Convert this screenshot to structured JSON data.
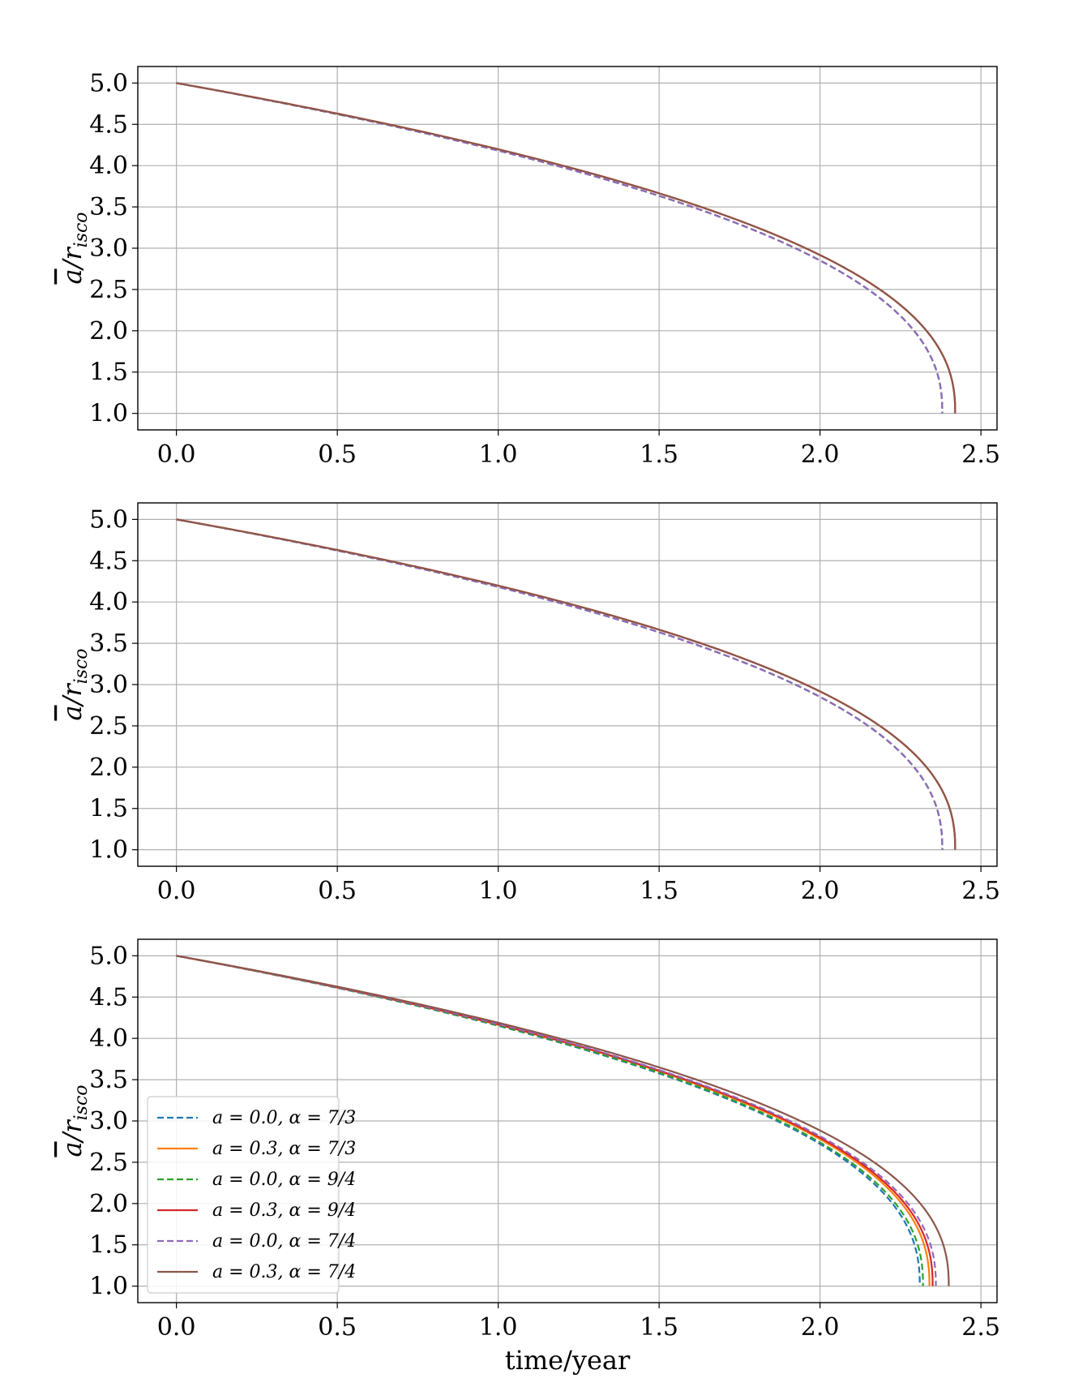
{
  "chart_data": [
    {
      "type": "line",
      "title": "",
      "xlabel": "",
      "ylabel": "ā/r_isco",
      "ylabel_display": {
        "main": "a",
        "over": "/r",
        "sub": "isco"
      },
      "xlim": [
        -0.12,
        2.55
      ],
      "ylim": [
        0.8,
        5.2
      ],
      "xticks": [
        "0.0",
        "0.5",
        "1.0",
        "1.5",
        "2.0",
        "2.5"
      ],
      "yticks": [
        "1.0",
        "1.5",
        "2.0",
        "2.5",
        "3.0",
        "3.5",
        "4.0",
        "4.5",
        "5.0"
      ],
      "grid": true,
      "legend": false,
      "series": [
        {
          "color": "#1f77b4",
          "dashed": true,
          "x_end": 2.38
        },
        {
          "color": "#ff7f0e",
          "dashed": false,
          "x_end": 2.42
        },
        {
          "color": "#2ca02c",
          "dashed": true,
          "x_end": 2.38
        },
        {
          "color": "#d62728",
          "dashed": false,
          "x_end": 2.42
        },
        {
          "color": "#9467bd",
          "dashed": true,
          "x_end": 2.38
        },
        {
          "color": "#8c564b",
          "dashed": false,
          "x_end": 2.42
        }
      ]
    },
    {
      "type": "line",
      "title": "",
      "xlabel": "",
      "ylabel": "ā/r_isco",
      "ylabel_display": {
        "main": "a",
        "over": "/r",
        "sub": "isco"
      },
      "xlim": [
        -0.12,
        2.55
      ],
      "ylim": [
        0.8,
        5.2
      ],
      "xticks": [
        "0.0",
        "0.5",
        "1.0",
        "1.5",
        "2.0",
        "2.5"
      ],
      "yticks": [
        "1.0",
        "1.5",
        "2.0",
        "2.5",
        "3.0",
        "3.5",
        "4.0",
        "4.5",
        "5.0"
      ],
      "grid": true,
      "legend": false,
      "series": [
        {
          "color": "#1f77b4",
          "dashed": true,
          "x_end": 2.38
        },
        {
          "color": "#ff7f0e",
          "dashed": false,
          "x_end": 2.42
        },
        {
          "color": "#2ca02c",
          "dashed": true,
          "x_end": 2.38
        },
        {
          "color": "#d62728",
          "dashed": false,
          "x_end": 2.42
        },
        {
          "color": "#9467bd",
          "dashed": true,
          "x_end": 2.38
        },
        {
          "color": "#8c564b",
          "dashed": false,
          "x_end": 2.42
        }
      ]
    },
    {
      "type": "line",
      "title": "",
      "xlabel": "time/year",
      "ylabel": "ā/r_isco",
      "ylabel_display": {
        "main": "a",
        "over": "/r",
        "sub": "isco"
      },
      "xlim": [
        -0.12,
        2.55
      ],
      "ylim": [
        0.8,
        5.2
      ],
      "xticks": [
        "0.0",
        "0.5",
        "1.0",
        "1.5",
        "2.0",
        "2.5"
      ],
      "yticks": [
        "1.0",
        "1.5",
        "2.0",
        "2.5",
        "3.0",
        "3.5",
        "4.0",
        "4.5",
        "5.0"
      ],
      "grid": true,
      "legend": "lower-left",
      "series": [
        {
          "name": "a = 0.0, α = 7/3",
          "color": "#1f77b4",
          "dashed": true,
          "x_end": 2.31
        },
        {
          "name": "a = 0.3, α = 7/3",
          "color": "#ff7f0e",
          "dashed": false,
          "x_end": 2.34
        },
        {
          "name": "a = 0.0, α = 9/4",
          "color": "#2ca02c",
          "dashed": true,
          "x_end": 2.32
        },
        {
          "name": "a = 0.3, α = 9/4",
          "color": "#d62728",
          "dashed": false,
          "x_end": 2.35
        },
        {
          "name": "a = 0.0, α = 7/4",
          "color": "#9467bd",
          "dashed": true,
          "x_end": 2.36
        },
        {
          "name": "a = 0.3, α = 7/4",
          "color": "#8c564b",
          "dashed": false,
          "x_end": 2.4
        }
      ]
    }
  ]
}
